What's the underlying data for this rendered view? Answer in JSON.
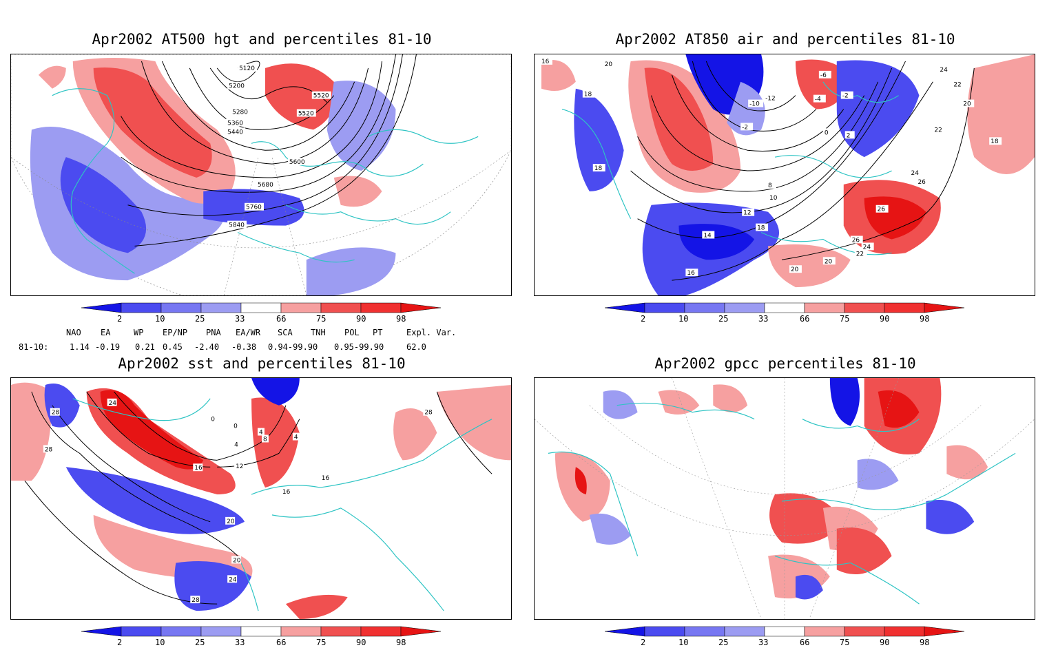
{
  "colors": {
    "coast": "#2ec4c4",
    "blue_dark": "#1414e6",
    "blue_mid": "#4b4bf0",
    "blue_light": "#9c9cf2",
    "red_light": "#f6a0a0",
    "red_mid": "#f05050",
    "red_dark": "#e61414"
  },
  "panels": [
    {
      "title": "Apr2002 AT500 hgt and percentiles 81-10",
      "contour_labels": [
        "5120",
        "5200",
        "5280",
        "5360",
        "5440",
        "5520",
        "5520",
        "5600",
        "5680",
        "5760",
        "5840"
      ]
    },
    {
      "title": "Apr2002 AT850 air and percentiles 81-10",
      "contour_labels": [
        "16",
        "20",
        "18",
        "18",
        "-10",
        "-12",
        "-2",
        "-6",
        "-4",
        "-2",
        "0",
        "2",
        "8",
        "10",
        "12",
        "14",
        "16",
        "18",
        "20",
        "24",
        "22",
        "22",
        "20",
        "18",
        "24",
        "26",
        "26",
        "26",
        "24",
        "22",
        "20"
      ]
    },
    {
      "title": "Apr2002 sst and percentiles 81-10",
      "contour_labels": [
        "24",
        "28",
        "28",
        "0",
        "0",
        "4",
        "8",
        "4",
        "4",
        "12",
        "16",
        "16",
        "16",
        "20",
        "20",
        "24",
        "28",
        "28"
      ]
    },
    {
      "title": "Apr2002 gpcc percentiles 81-10",
      "contour_labels": []
    }
  ],
  "colorbar": {
    "ticks": [
      "2",
      "10",
      "25",
      "33",
      "66",
      "75",
      "90",
      "98"
    ]
  },
  "teleconnections": {
    "headers": [
      "NAO",
      "EA",
      "WP",
      "EP/NP",
      "PNA",
      "EA/WR",
      "SCA",
      "TNH",
      "POL",
      "PT",
      "Expl. Var."
    ],
    "row_label": "81-10:",
    "values": [
      "1.14",
      "-0.19",
      "0.21",
      "0.45",
      "-2.40",
      "-0.38",
      "0.94-99.90",
      "0.95-99.90",
      "62.0"
    ]
  }
}
